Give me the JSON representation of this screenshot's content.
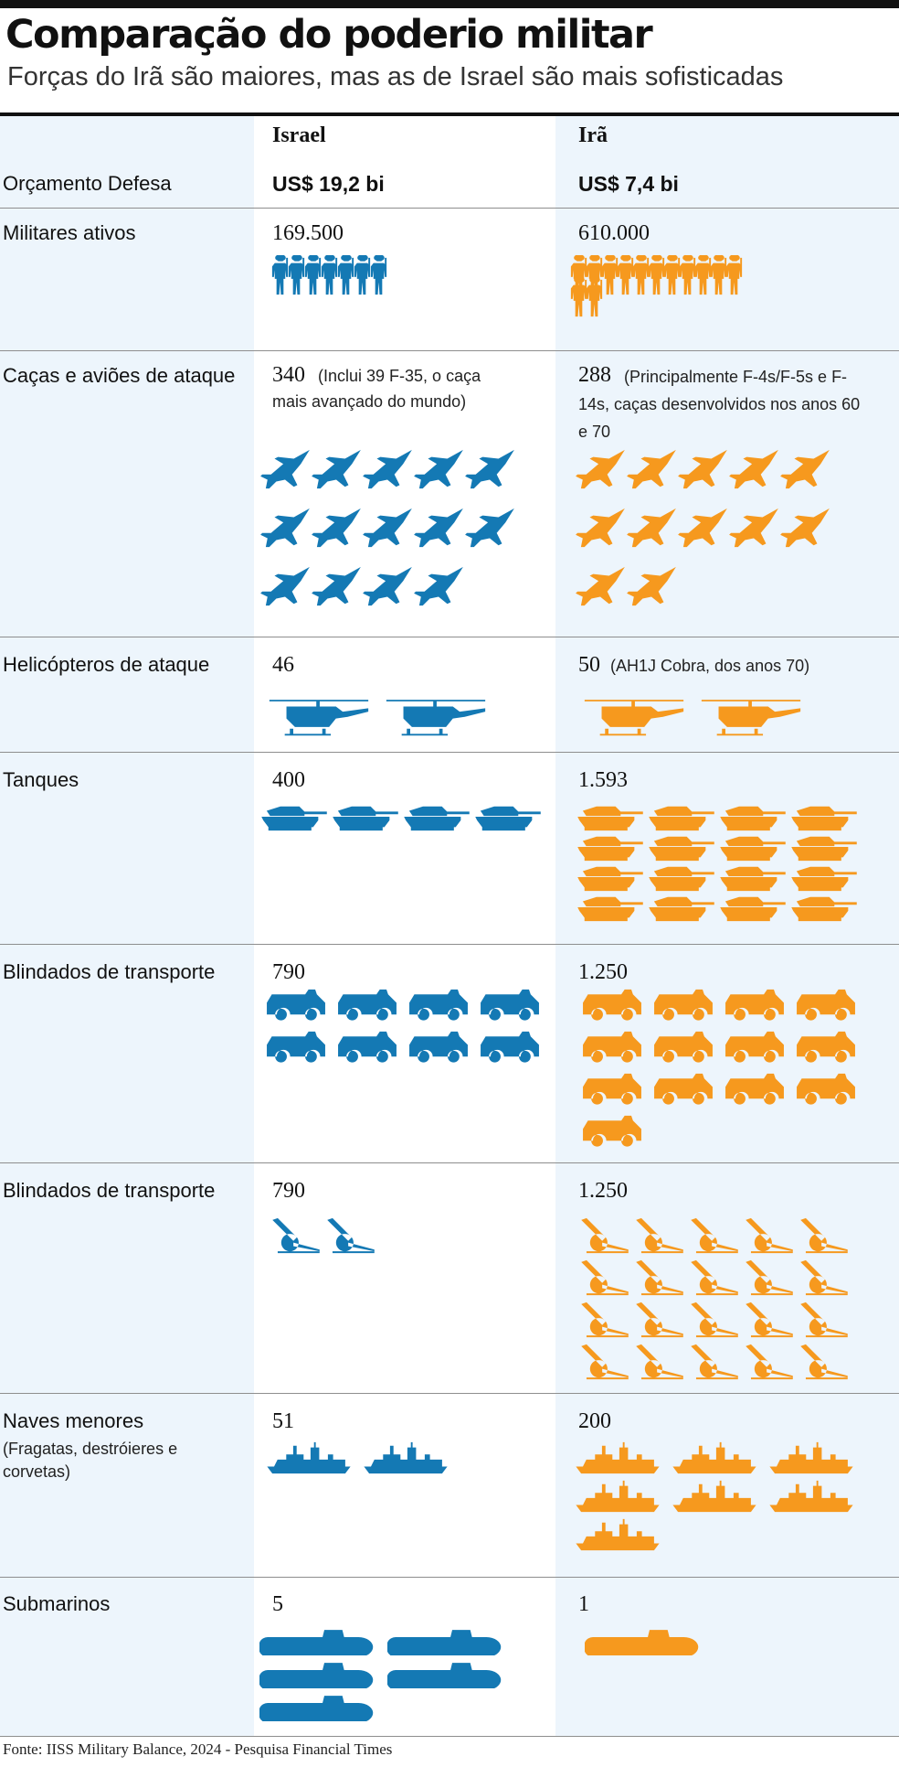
{
  "title": "Comparação do poderio militar",
  "subtitle": "Forças do Irã são maiores, mas as de Israel são mais sofisticadas",
  "colors": {
    "israel": "#1479B4",
    "iran": "#F6991E"
  },
  "columns": {
    "israel": "Israel",
    "iran": "Irã"
  },
  "budget": {
    "label": "Orçamento Defesa",
    "israel": "US$ 19,2 bi",
    "iran": "US$ 7,4 bi"
  },
  "rows": [
    {
      "label": "Militares ativos",
      "israel_value": "169.500",
      "iran_value": "610.000",
      "icon": "soldier-icon"
    },
    {
      "label": "Caças e aviões de ataque",
      "israel_value": "340",
      "israel_note": "(Inclui 39 F-35, o caça mais avançado do mundo)",
      "iran_value": "288",
      "iran_note": "(Principalmente F-4s/F-5s e F-14s, caças desenvolvidos nos anos 60 e 70",
      "icon": "fighter-jet-icon"
    },
    {
      "label": "Helicópteros de ataque",
      "israel_value": "46",
      "iran_value": "50",
      "iran_note": "(AH1J Cobra, dos anos 70)",
      "icon": "helicopter-icon"
    },
    {
      "label": "Tanques",
      "israel_value": "400",
      "iran_value": "1.593",
      "icon": "tank-icon"
    },
    {
      "label": "Blindados de transporte",
      "israel_value": "790",
      "iran_value": "1.250",
      "icon": "armored-vehicle-icon"
    },
    {
      "label": "Blindados de transporte",
      "israel_value": "790",
      "iran_value": "1.250",
      "icon": "artillery-icon"
    },
    {
      "label": "Naves menores",
      "sublabel": "(Fragatas, destróieres e corvetas)",
      "israel_value": "51",
      "iran_value": "200",
      "icon": "warship-icon"
    },
    {
      "label": "Submarinos",
      "israel_value": "5",
      "iran_value": "1",
      "icon": "submarine-icon"
    }
  ],
  "chart_data": {
    "type": "table",
    "columns": [
      "Israel",
      "Irã"
    ],
    "categories": [
      "Orçamento Defesa",
      "Militares ativos",
      "Caças e aviões de ataque",
      "Helicópteros de ataque",
      "Tanques",
      "Blindados de transporte",
      "Blindados de transporte",
      "Naves menores",
      "Submarinos"
    ],
    "series": [
      {
        "name": "Israel",
        "values": [
          "US$ 19,2 bi",
          "169.500",
          "340",
          "46",
          "400",
          "790",
          "790",
          "51",
          "5"
        ]
      },
      {
        "name": "Irã",
        "values": [
          "US$ 7,4 bi",
          "610.000",
          "288",
          "50",
          "1.593",
          "1.250",
          "1.250",
          "200",
          "1"
        ]
      }
    ],
    "icon_counts": {
      "Israel": [
        7,
        14,
        2,
        4,
        8,
        2,
        2,
        5
      ],
      "Irã": [
        13,
        12,
        2,
        16,
        13,
        20,
        7,
        1
      ]
    }
  },
  "source": "Fonte: IISS Military Balance, 2024 - Pesquisa Financial Times"
}
